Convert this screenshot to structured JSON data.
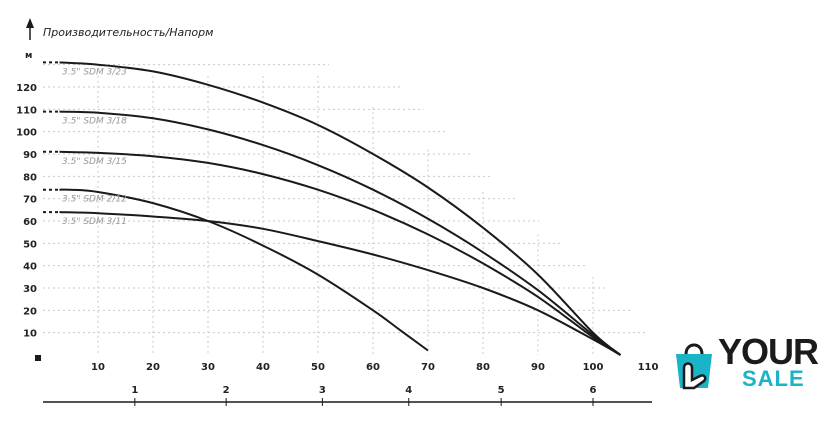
{
  "chart_data": {
    "type": "line",
    "title": "Производительность/Напорм",
    "ylabel": "м",
    "xlim": [
      0,
      110
    ],
    "ylim": [
      0,
      130
    ],
    "x_ticks": [
      10,
      20,
      30,
      40,
      50,
      60,
      70,
      80,
      90,
      100,
      110
    ],
    "x_tick_labels": [
      "10",
      "20",
      "30",
      "40",
      "50",
      "60",
      "70",
      "80",
      "90",
      "100",
      "110"
    ],
    "y_ticks": [
      10,
      20,
      30,
      40,
      50,
      60,
      70,
      80,
      90,
      100,
      110,
      120
    ],
    "y_tick_labels": [
      "10",
      "20",
      "30",
      "40",
      "50",
      "60",
      "70",
      "80",
      "90",
      "100",
      "110",
      "120"
    ],
    "secondary_x_ticks": [
      {
        "label": "1",
        "x": 16.7
      },
      {
        "label": "2",
        "x": 33.3
      },
      {
        "label": "3",
        "x": 50.8
      },
      {
        "label": "4",
        "x": 66.5
      },
      {
        "label": "5",
        "x": 83.3
      },
      {
        "label": "6",
        "x": 100
      }
    ],
    "grid": "dotted",
    "series": [
      {
        "name": "3.5\" SDM 3/23",
        "x": [
          0,
          10,
          20,
          30,
          40,
          50,
          60,
          70,
          80,
          90,
          100,
          105
        ],
        "y": [
          131,
          130,
          127,
          121,
          113,
          103,
          90,
          75,
          57,
          36,
          10,
          0
        ]
      },
      {
        "name": "3.5\" SDM 3/18",
        "x": [
          0,
          10,
          20,
          30,
          40,
          50,
          60,
          70,
          80,
          90,
          100,
          105
        ],
        "y": [
          109,
          108.5,
          106,
          101,
          94,
          85,
          74,
          61,
          46,
          29,
          9,
          0
        ]
      },
      {
        "name": "3.5\" SDM 3/15",
        "x": [
          0,
          10,
          20,
          30,
          40,
          50,
          60,
          70,
          80,
          90,
          100,
          105
        ],
        "y": [
          91,
          90.5,
          89,
          86,
          81,
          74,
          65,
          54,
          41,
          26,
          8,
          0
        ]
      },
      {
        "name": "3.5\" SDM 2/12",
        "x": [
          0,
          5,
          10,
          20,
          30,
          40,
          50,
          60,
          65,
          70
        ],
        "y": [
          74,
          74,
          73,
          68,
          60,
          49,
          36,
          20,
          11,
          2
        ]
      },
      {
        "name": "3.5\" SDM 3/11",
        "x": [
          0,
          10,
          20,
          30,
          40,
          50,
          60,
          70,
          80,
          90,
          100,
          105
        ],
        "y": [
          64,
          63.5,
          62,
          60,
          56.5,
          51,
          45,
          38,
          30,
          20,
          7,
          0
        ]
      }
    ]
  },
  "logo": {
    "top": "YOUR",
    "bottom": "SALE",
    "icon": "shopping-bag-hand-icon",
    "accent": "#19b4c8"
  }
}
